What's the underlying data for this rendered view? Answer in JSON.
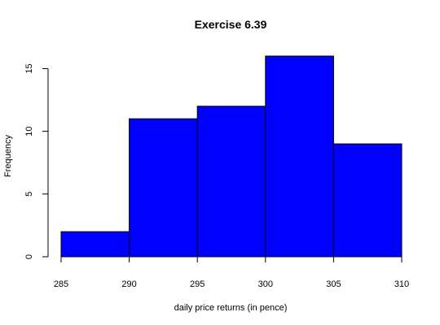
{
  "chart_data": {
    "type": "bar",
    "title": "Exercise 6.39",
    "xlabel": "daily price returns (in pence)",
    "ylabel": "Frequency",
    "bins": [
      {
        "from": 285,
        "to": 290,
        "count": 2
      },
      {
        "from": 290,
        "to": 295,
        "count": 11
      },
      {
        "from": 295,
        "to": 300,
        "count": 12
      },
      {
        "from": 300,
        "to": 305,
        "count": 16
      },
      {
        "from": 305,
        "to": 310,
        "count": 9
      }
    ],
    "xlim": [
      285,
      310
    ],
    "ylim": [
      0,
      16
    ],
    "xticks": [
      285,
      290,
      295,
      300,
      305,
      310
    ],
    "yticks": [
      0,
      5,
      10,
      15
    ],
    "bar_color": "#0000ff",
    "edge_color": "#000000",
    "grid": false
  }
}
